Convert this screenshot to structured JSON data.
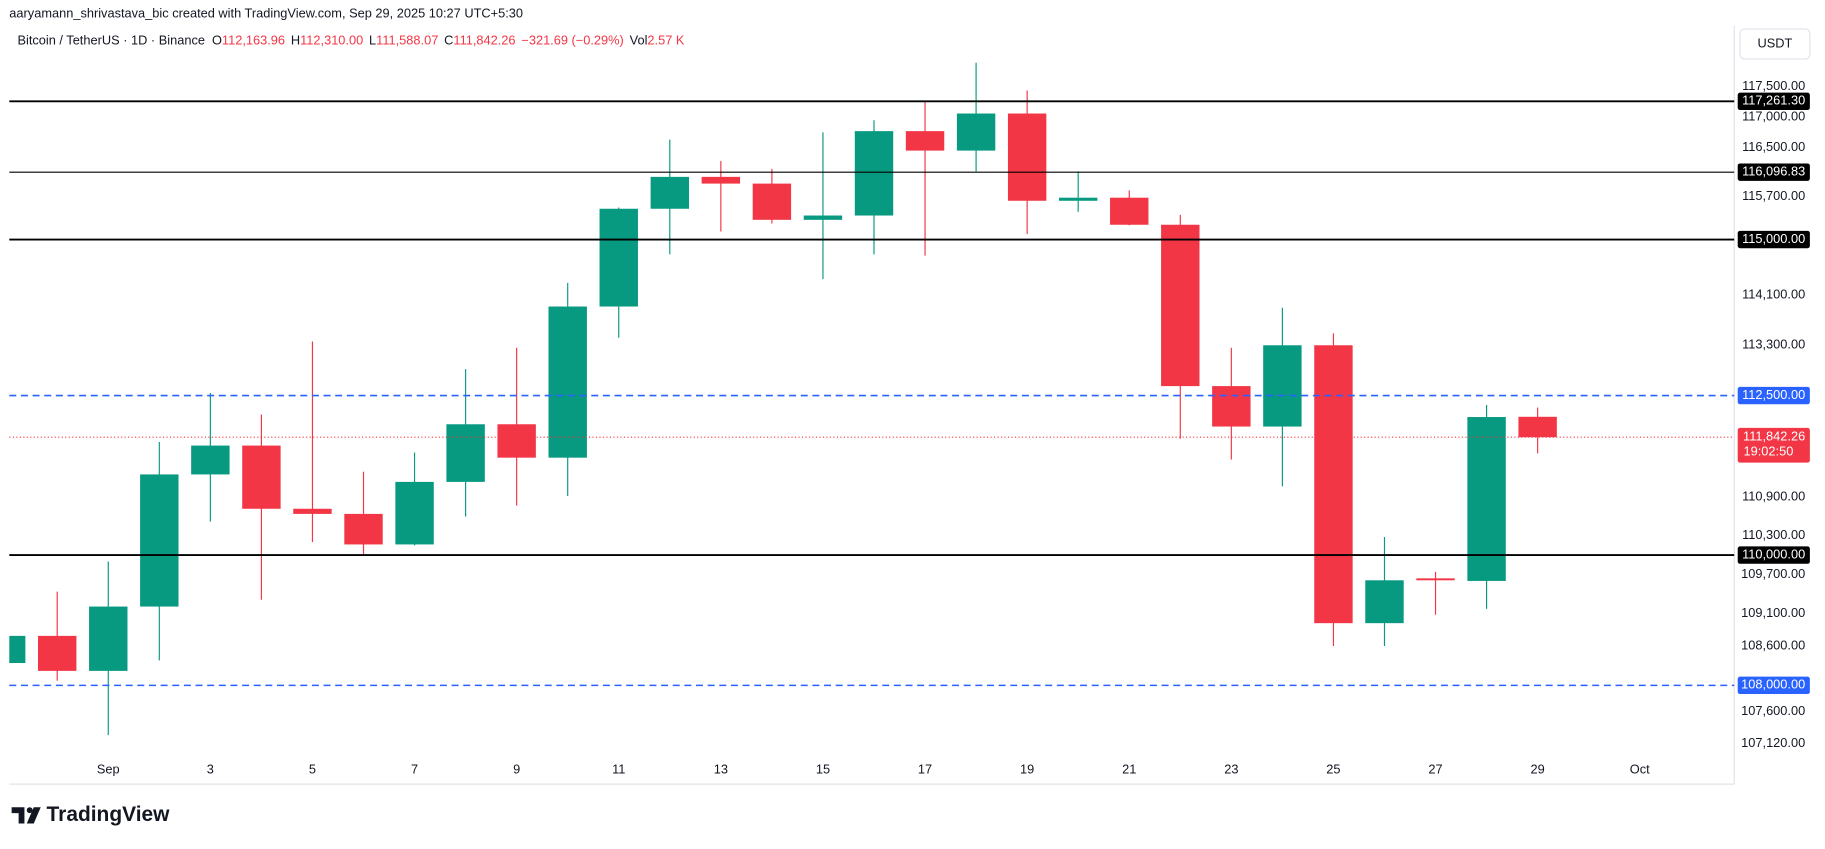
{
  "attribution": "aaryamann_shrivastava_bic created with TradingView.com, Sep 29, 2025 10:27 UTC+5:30",
  "brand": "TradingView",
  "chart_data": {
    "type": "candlestick",
    "title": "Bitcoin / TetherUS · 1D · Binance",
    "legend": [
      {
        "label": "O",
        "value": "112,163.96"
      },
      {
        "label": "H",
        "value": "112,310.00"
      },
      {
        "label": "L",
        "value": "111,588.07"
      },
      {
        "label": "C",
        "value": "111,842.26"
      }
    ],
    "change": "−321.69 (−0.29%)",
    "volume": {
      "label": "Vol",
      "value": "2.57 K"
    },
    "currency": "USDT",
    "up_color": "#089981",
    "down_color": "#f23645",
    "categories": [
      null,
      null,
      "Sep",
      null,
      "3",
      null,
      "5",
      null,
      "7",
      null,
      "9",
      null,
      "11",
      null,
      "13",
      null,
      "15",
      null,
      "17",
      null,
      "19",
      null,
      "21",
      null,
      "23",
      null,
      "25",
      null,
      "27",
      null,
      "29",
      null,
      "Oct"
    ],
    "open": [
      108340,
      108755,
      108220,
      109205,
      111257,
      111710,
      110720,
      110640,
      110165,
      111140,
      112046,
      111520,
      113920,
      115500,
      116020,
      115910,
      115320,
      115390,
      116770,
      116450,
      117060,
      115630,
      115680,
      115240,
      112650,
      112010,
      113300,
      108950,
      109640,
      109600,
      112163.96,
      null,
      null
    ],
    "high": [
      108780,
      109436,
      109900,
      111766,
      112540,
      112200,
      113360,
      111300,
      111600,
      112920,
      113260,
      114300,
      115520,
      116630,
      116280,
      116150,
      116750,
      116950,
      117250,
      117900,
      117440,
      116110,
      115800,
      115400,
      113260,
      113900,
      113490,
      110280,
      109740,
      112350,
      112310.0,
      null,
      null
    ],
    "low": [
      108320,
      108070,
      107245,
      108380,
      110520,
      109310,
      110200,
      110000,
      110150,
      110600,
      110770,
      110920,
      113420,
      114760,
      115130,
      115260,
      114360,
      114760,
      114740,
      116110,
      115090,
      115450,
      115230,
      111820,
      111490,
      111070,
      108600,
      108600,
      109080,
      109170,
      111588.07,
      null,
      null
    ],
    "close": [
      108755,
      108220,
      109205,
      111257,
      111710,
      110720,
      110640,
      110165,
      111140,
      112046,
      111520,
      113920,
      115500,
      116020,
      115910,
      115320,
      115390,
      116770,
      116450,
      117060,
      115630,
      115680,
      115240,
      112650,
      112010,
      113300,
      108950,
      109610,
      109610,
      112160,
      111842.26,
      null,
      null
    ],
    "log_scale": true,
    "grid": false,
    "ylim": [
      106890,
      118077
    ],
    "yticks": [
      {
        "value": 117500,
        "label": "117,500.00"
      },
      {
        "value": 117000,
        "label": "117,000.00"
      },
      {
        "value": 116500,
        "label": "116,500.00"
      },
      {
        "value": 115700,
        "label": "115,700.00"
      },
      {
        "value": 114100,
        "label": "114,100.00"
      },
      {
        "value": 113300,
        "label": "113,300.00"
      },
      {
        "value": 110900,
        "label": "110,900.00"
      },
      {
        "value": 110300,
        "label": "110,300.00"
      },
      {
        "value": 109700,
        "label": "109,700.00"
      },
      {
        "value": 109100,
        "label": "109,100.00"
      },
      {
        "value": 108600,
        "label": "108,600.00"
      },
      {
        "value": 107600,
        "label": "107,600.00"
      },
      {
        "value": 107120,
        "label": "107,120.00"
      }
    ],
    "levels": [
      {
        "value": 117261.3,
        "label": "117,261.30",
        "color": "#000000",
        "style": "solid"
      },
      {
        "value": 116096.83,
        "label": "116,096.83",
        "color": "#000000",
        "style": "solid"
      },
      {
        "value": 115000,
        "label": "115,000.00",
        "color": "#000000",
        "style": "solid"
      },
      {
        "value": 112500,
        "label": "112,500.00",
        "color": "#2962ff",
        "style": "dashed"
      },
      {
        "value": 110000,
        "label": "110,000.00",
        "color": "#000000",
        "style": "solid"
      },
      {
        "value": 108000,
        "label": "108,000.00",
        "color": "#2962ff",
        "style": "dashed"
      }
    ],
    "last_price": {
      "value": 111842.26,
      "label": "111,842.26",
      "countdown": "19:02:50",
      "color": "#f23645"
    }
  }
}
